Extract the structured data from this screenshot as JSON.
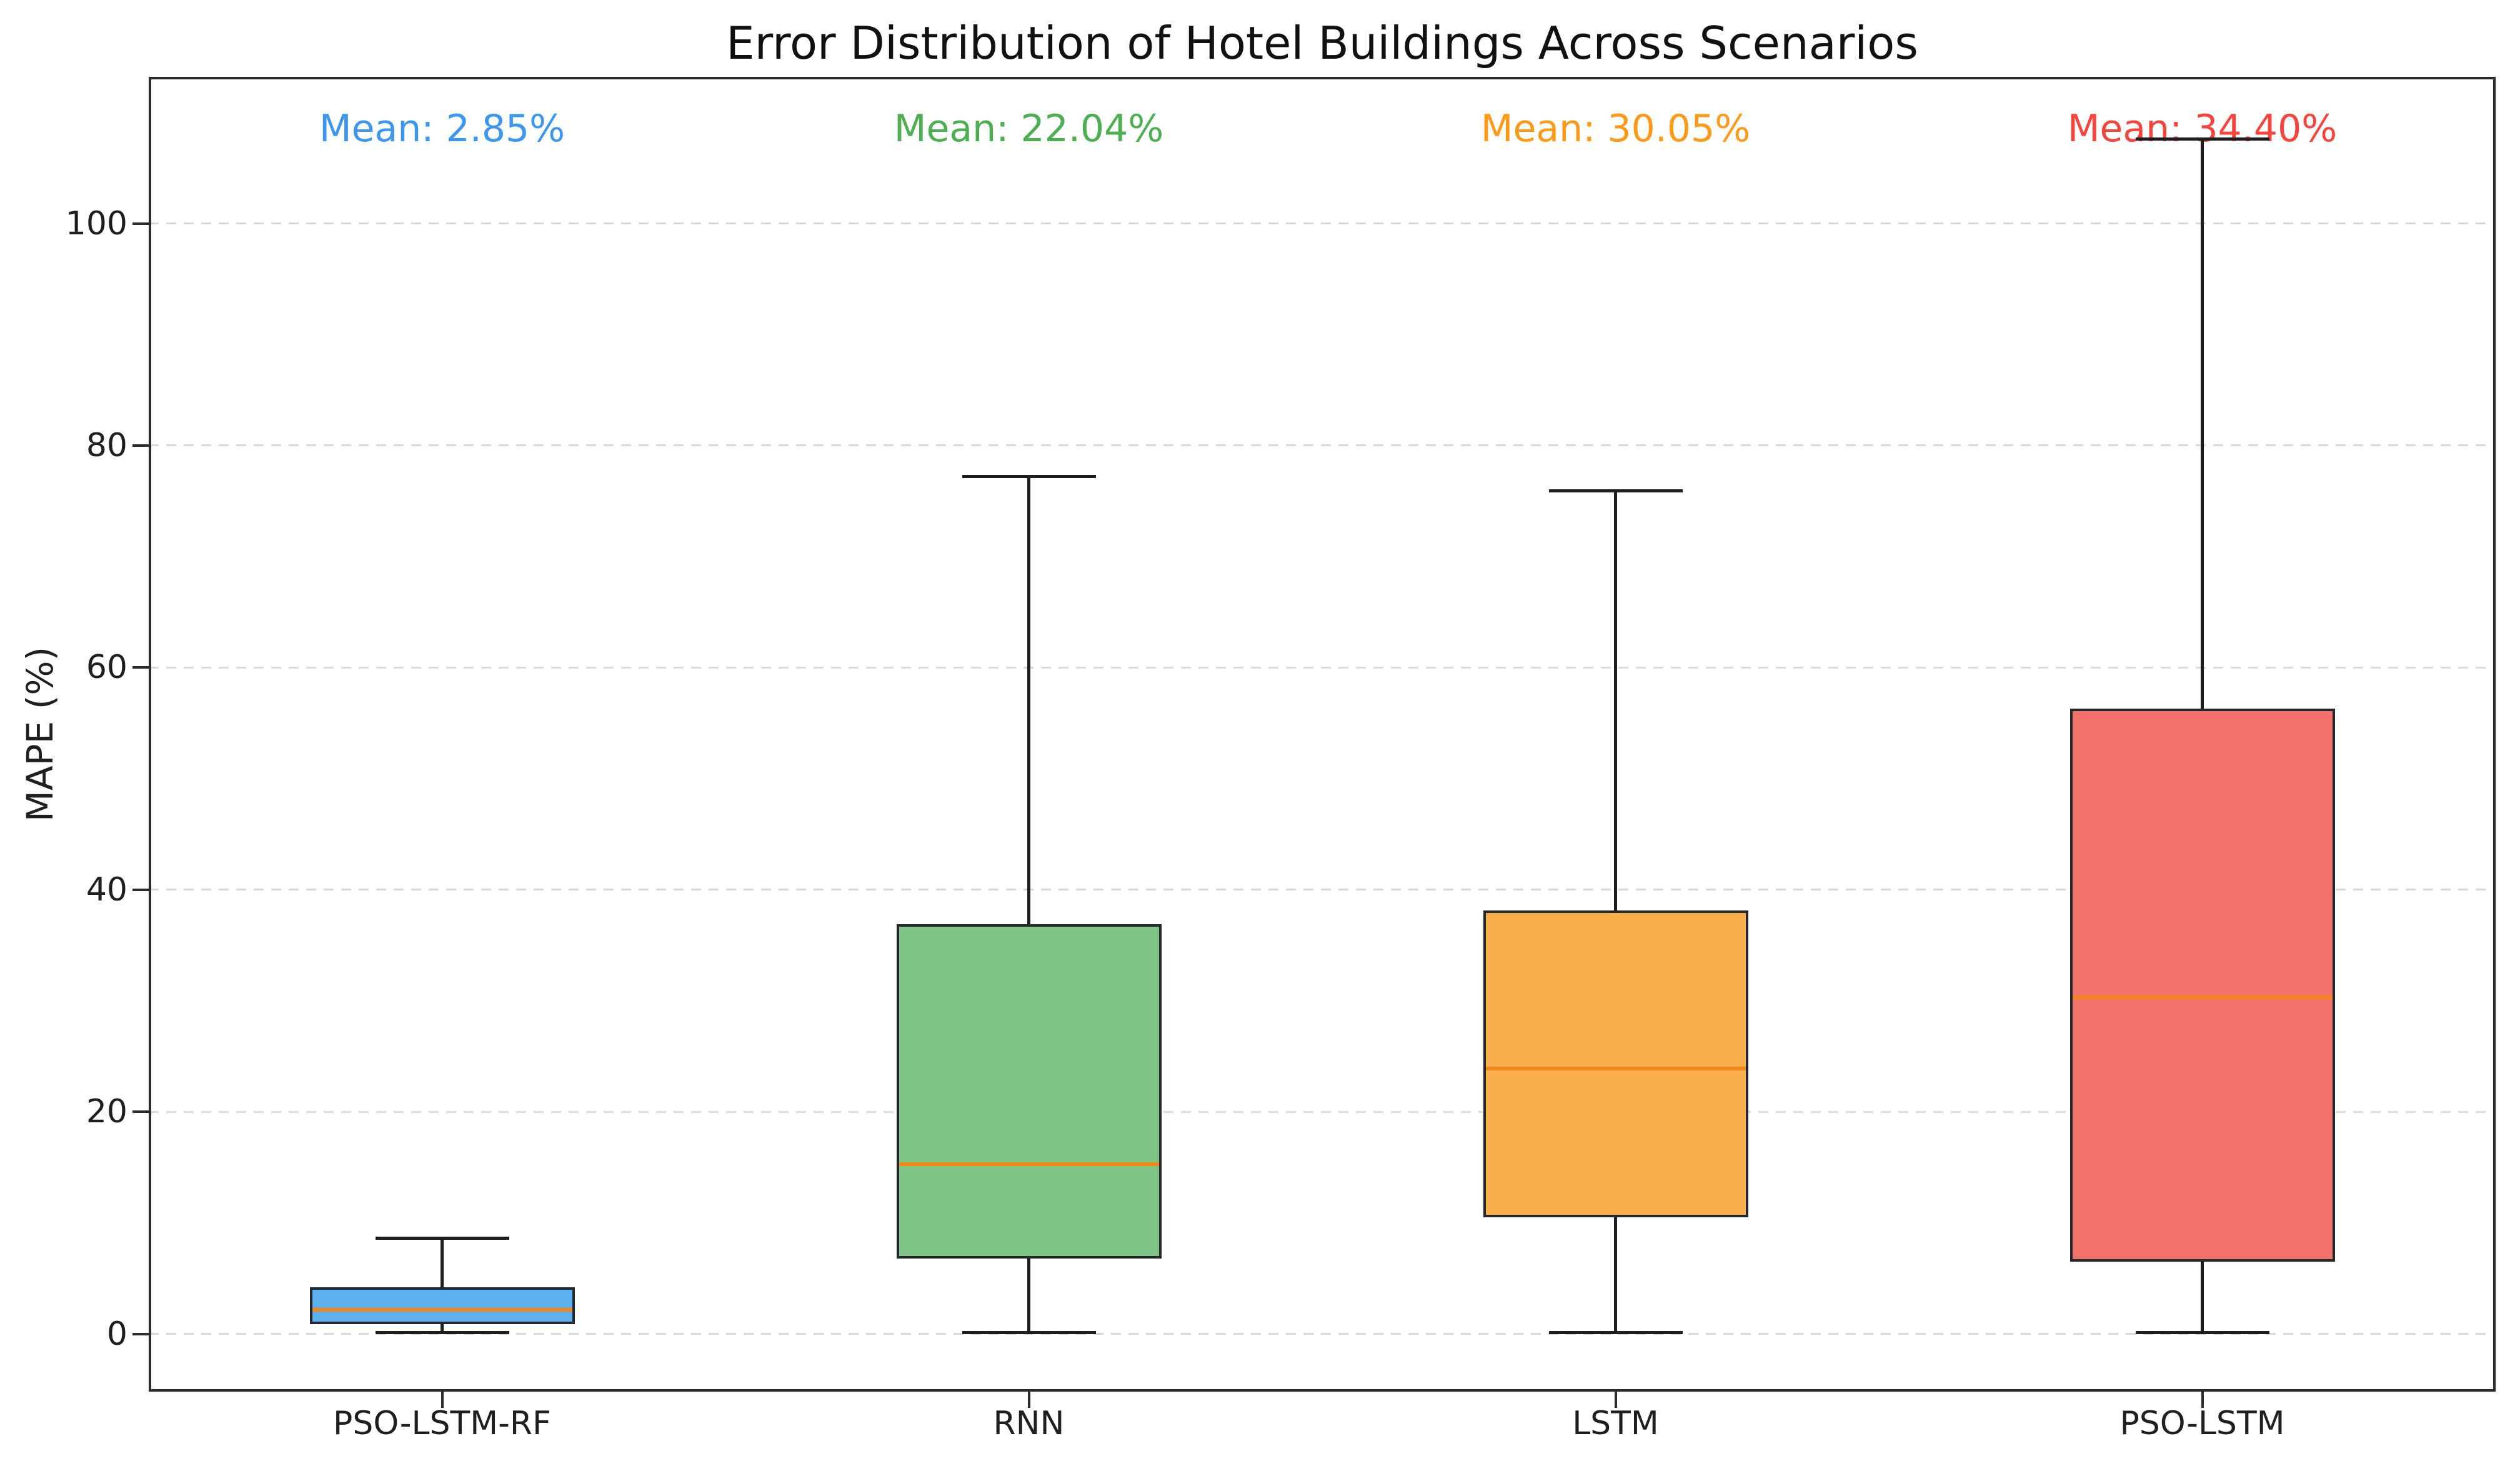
{
  "chart_data": {
    "type": "boxplot",
    "title": "Error Distribution of Hotel Buildings Across Scenarios",
    "ylabel": "MAPE (%)",
    "xlabel": "",
    "ylim": [
      -5.2,
      113.2
    ],
    "yticks": [
      0,
      20,
      40,
      60,
      80,
      100
    ],
    "grid": "horizontal dashed gridlines at each y tick",
    "legend": "none",
    "categories": [
      "PSO-LSTM-RF",
      "RNN",
      "LSTM",
      "PSO-LSTM"
    ],
    "series": [
      {
        "label": "PSO-LSTM-RF",
        "whisker_low": 0.1,
        "q1": 1.0,
        "median": 2.2,
        "q3": 4.1,
        "whisker_high": 8.6,
        "mean": 2.85,
        "mean_label": "Mean: 2.85%",
        "box_color": "#5CB0EE",
        "mean_label_color": "#3B97F0"
      },
      {
        "label": "RNN",
        "whisker_low": 0.1,
        "q1": 6.9,
        "median": 15.3,
        "q3": 36.8,
        "whisker_high": 77.2,
        "mean": 22.04,
        "mean_label": "Mean: 22.04%",
        "box_color": "#7FC585",
        "mean_label_color": "#4CAF50"
      },
      {
        "label": "LSTM",
        "whisker_low": 0.1,
        "q1": 10.6,
        "median": 23.9,
        "q3": 38.0,
        "whisker_high": 75.9,
        "mean": 30.05,
        "mean_label": "Mean: 30.05%",
        "box_color": "#FAAF4D",
        "mean_label_color": "#FF9814"
      },
      {
        "label": "PSO-LSTM",
        "whisker_low": 0.1,
        "q1": 6.6,
        "median": 30.3,
        "q3": 56.2,
        "whisker_high": 107.6,
        "mean": 34.4,
        "mean_label": "Mean: 34.40%",
        "box_color": "#F2726C",
        "mean_label_color": "#F8423C"
      }
    ],
    "median_line_color": "#F58618",
    "whisker_color": "#1E1E1E",
    "box_edge_color": "#23272E",
    "grid_color": "#D9D9D9",
    "spine_color": "#2B2B2B",
    "text_color": "#1F1F1F",
    "background": "#FFFFFF"
  }
}
